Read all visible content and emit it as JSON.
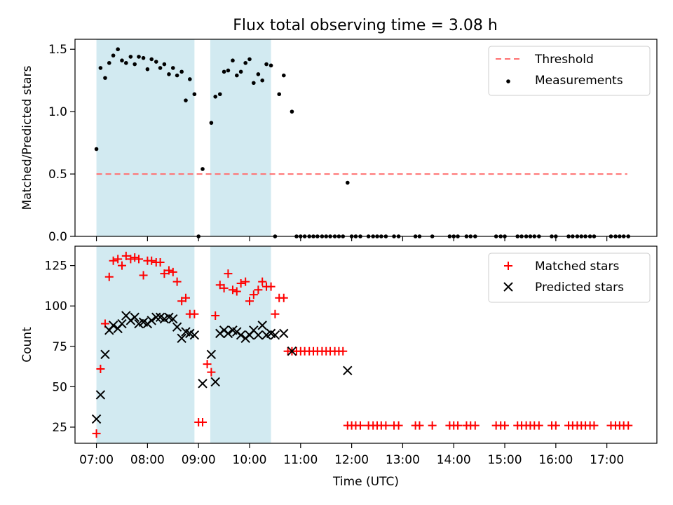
{
  "title": "Flux total observing time = 3.08 h",
  "colors": {
    "threshold": "#ff7070",
    "measurement": "#000000",
    "matched": "#ff0000",
    "predicted": "#000000",
    "shade": "#add8e6"
  },
  "chart_data": [
    {
      "type": "scatter",
      "ylabel": "Matched/Predicted stars",
      "ylim": [
        0,
        1.58
      ],
      "yticks": [
        0,
        0.5,
        1.0,
        1.5
      ],
      "ytick_labels": [
        "0.0",
        "0.5",
        "1.0",
        "1.5"
      ],
      "xlim": [
        6.58,
        17.98
      ],
      "shaded_intervals": [
        [
          7.0,
          8.92
        ],
        [
          9.23,
          10.42
        ]
      ],
      "legend": {
        "position": "top-right",
        "entries": [
          "Threshold",
          "Measurements"
        ]
      },
      "threshold": {
        "name": "Threshold",
        "value": 0.5,
        "x_range": [
          7.0,
          17.4
        ]
      },
      "series": [
        {
          "name": "Measurements",
          "x": [
            7.0,
            7.08,
            7.17,
            7.25,
            7.33,
            7.42,
            7.5,
            7.58,
            7.67,
            7.75,
            7.83,
            7.92,
            8.0,
            8.08,
            8.17,
            8.25,
            8.33,
            8.42,
            8.5,
            8.58,
            8.67,
            8.75,
            8.83,
            8.92,
            9.0,
            9.08,
            9.25,
            9.33,
            9.42,
            9.5,
            9.58,
            9.67,
            9.75,
            9.83,
            9.92,
            10.0,
            10.08,
            10.17,
            10.25,
            10.33,
            10.42,
            10.5,
            10.58,
            10.67,
            10.83,
            10.92,
            11.0,
            11.08,
            11.17,
            11.25,
            11.33,
            11.42,
            11.5,
            11.58,
            11.67,
            11.75,
            11.83,
            11.92,
            12.0,
            12.08,
            12.17,
            12.33,
            12.42,
            12.5,
            12.58,
            12.67,
            12.83,
            12.92,
            13.25,
            13.33,
            13.58,
            13.92,
            14.0,
            14.08,
            14.25,
            14.33,
            14.42,
            14.83,
            14.92,
            15.0,
            15.25,
            15.33,
            15.42,
            15.5,
            15.58,
            15.67,
            15.92,
            16.0,
            16.25,
            16.33,
            16.42,
            16.5,
            16.58,
            16.67,
            16.75,
            17.08,
            17.17,
            17.25,
            17.33,
            17.42
          ],
          "y": [
            0.7,
            1.35,
            1.27,
            1.39,
            1.45,
            1.5,
            1.41,
            1.39,
            1.44,
            1.38,
            1.44,
            1.43,
            1.34,
            1.42,
            1.4,
            1.35,
            1.38,
            1.3,
            1.35,
            1.29,
            1.32,
            1.09,
            1.26,
            1.14,
            0.0,
            0.54,
            0.91,
            1.12,
            1.14,
            1.32,
            1.33,
            1.41,
            1.29,
            1.32,
            1.39,
            1.42,
            1.23,
            1.3,
            1.25,
            1.38,
            1.37,
            0.0,
            1.14,
            1.29,
            1.0,
            0.0,
            0.0,
            0.0,
            0.0,
            0.0,
            0.0,
            0.0,
            0.0,
            0.0,
            0.0,
            0.0,
            0.0,
            0.43,
            0.0,
            0.0,
            0.0,
            0.0,
            0.0,
            0.0,
            0.0,
            0.0,
            0.0,
            0.0,
            0.0,
            0.0,
            0.0,
            0.0,
            0.0,
            0.0,
            0.0,
            0.0,
            0.0,
            0.0,
            0.0,
            0.0,
            0.0,
            0.0,
            0.0,
            0.0,
            0.0,
            0.0,
            0.0,
            0.0,
            0.0,
            0.0,
            0.0,
            0.0,
            0.0,
            0.0,
            0.0,
            0.0,
            0.0,
            0.0,
            0.0,
            0.0
          ]
        }
      ]
    },
    {
      "type": "scatter",
      "xlabel": "Time (UTC)",
      "ylabel": "Count",
      "ylim": [
        15,
        137
      ],
      "yticks": [
        25,
        50,
        75,
        100,
        125
      ],
      "ytick_labels": [
        "25",
        "50",
        "75",
        "100",
        "125"
      ],
      "xlim": [
        6.58,
        17.98
      ],
      "xticks": [
        7,
        8,
        9,
        10,
        11,
        12,
        13,
        14,
        15,
        16,
        17
      ],
      "xtick_labels": [
        "07:00",
        "08:00",
        "09:00",
        "10:00",
        "11:00",
        "12:00",
        "13:00",
        "14:00",
        "15:00",
        "16:00",
        "17:00"
      ],
      "shaded_intervals": [
        [
          7.0,
          8.92
        ],
        [
          9.23,
          10.42
        ]
      ],
      "legend": {
        "position": "top-right",
        "entries": [
          "Matched stars",
          "Predicted stars"
        ]
      },
      "series": [
        {
          "name": "Matched stars",
          "marker": "plus",
          "x": [
            7.0,
            7.08,
            7.17,
            7.25,
            7.33,
            7.42,
            7.5,
            7.58,
            7.67,
            7.75,
            7.83,
            7.92,
            8.0,
            8.08,
            8.17,
            8.25,
            8.33,
            8.42,
            8.5,
            8.58,
            8.67,
            8.75,
            8.83,
            8.92,
            9.0,
            9.08,
            9.17,
            9.25,
            9.33,
            9.42,
            9.5,
            9.58,
            9.67,
            9.75,
            9.83,
            9.92,
            10.0,
            10.08,
            10.17,
            10.25,
            10.33,
            10.42,
            10.5,
            10.58,
            10.67,
            10.75,
            10.83,
            10.92,
            11.0,
            11.08,
            11.17,
            11.25,
            11.33,
            11.42,
            11.5,
            11.58,
            11.67,
            11.75,
            11.83,
            11.92,
            12.0,
            12.08,
            12.17,
            12.33,
            12.42,
            12.5,
            12.58,
            12.67,
            12.83,
            12.92,
            13.25,
            13.33,
            13.58,
            13.92,
            14.0,
            14.08,
            14.25,
            14.33,
            14.42,
            14.83,
            14.92,
            15.0,
            15.25,
            15.33,
            15.42,
            15.5,
            15.58,
            15.67,
            15.92,
            16.0,
            16.25,
            16.33,
            16.42,
            16.5,
            16.58,
            16.67,
            16.75,
            17.08,
            17.17,
            17.25,
            17.33,
            17.42
          ],
          "y": [
            21,
            61,
            89,
            118,
            128,
            129,
            125,
            131,
            129,
            130,
            129,
            119,
            128,
            128,
            127,
            127,
            120,
            122,
            121,
            115,
            103,
            105,
            95,
            95,
            28,
            28,
            64,
            59,
            94,
            113,
            111,
            120,
            110,
            109,
            114,
            115,
            103,
            107,
            110,
            115,
            112,
            112,
            95,
            105,
            105,
            72,
            72,
            72,
            72,
            72,
            72,
            72,
            72,
            72,
            72,
            72,
            72,
            72,
            72,
            26,
            26,
            26,
            26,
            26,
            26,
            26,
            26,
            26,
            26,
            26,
            26,
            26,
            26,
            26,
            26,
            26,
            26,
            26,
            26,
            26,
            26,
            26,
            26,
            26,
            26,
            26,
            26,
            26,
            26,
            26,
            26,
            26,
            26,
            26,
            26,
            26,
            26,
            26,
            26,
            26,
            26,
            26
          ]
        },
        {
          "name": "Predicted stars",
          "marker": "x",
          "x": [
            7.0,
            7.08,
            7.17,
            7.25,
            7.33,
            7.42,
            7.5,
            7.58,
            7.67,
            7.75,
            7.83,
            7.92,
            8.0,
            8.08,
            8.17,
            8.25,
            8.33,
            8.42,
            8.5,
            8.58,
            8.67,
            8.75,
            8.83,
            8.92,
            9.08,
            9.25,
            9.33,
            9.42,
            9.5,
            9.58,
            9.67,
            9.75,
            9.83,
            9.92,
            10.0,
            10.08,
            10.17,
            10.25,
            10.33,
            10.42,
            10.5,
            10.67,
            10.83,
            11.92
          ],
          "y": [
            30,
            45,
            70,
            85,
            88,
            86,
            89,
            94,
            91,
            93,
            89,
            90,
            89,
            91,
            93,
            93,
            92,
            93,
            92,
            87,
            80,
            84,
            83,
            82,
            52,
            70,
            53,
            83,
            85,
            83,
            85,
            84,
            82,
            80,
            82,
            85,
            82,
            88,
            82,
            83,
            82,
            83,
            72,
            60
          ]
        }
      ]
    }
  ]
}
